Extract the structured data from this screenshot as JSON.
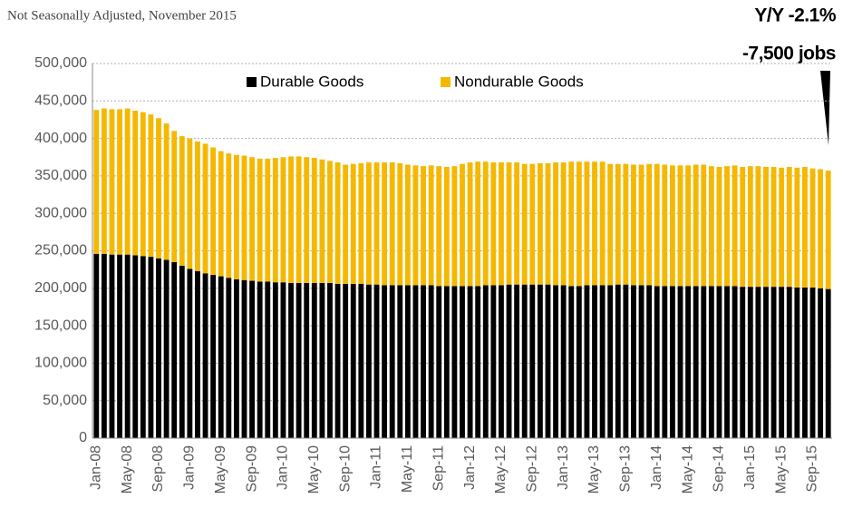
{
  "chart_data": {
    "type": "stacked_bar",
    "subtitle": "Not Seasonally Adjusted, November 2015",
    "annotations": [
      "Y/Y  -2.1%",
      "-7,500 jobs"
    ],
    "categories": [
      "Jan-08",
      null,
      null,
      null,
      "May-08",
      null,
      null,
      null,
      "Sep-08",
      null,
      null,
      null,
      "Jan-09",
      null,
      null,
      null,
      "May-09",
      null,
      null,
      null,
      "Sep-09",
      null,
      null,
      null,
      "Jan-10",
      null,
      null,
      null,
      "May-10",
      null,
      null,
      null,
      "Sep-10",
      null,
      null,
      null,
      "Jan-11",
      null,
      null,
      null,
      "May-11",
      null,
      null,
      null,
      "Sep-11",
      null,
      null,
      null,
      "Jan-12",
      null,
      null,
      null,
      "May-12",
      null,
      null,
      null,
      "Sep-12",
      null,
      null,
      null,
      "Jan-13",
      null,
      null,
      null,
      "May-13",
      null,
      null,
      null,
      "Sep-13",
      null,
      null,
      null,
      "Jan-14",
      null,
      null,
      null,
      "May-14",
      null,
      null,
      null,
      "Sep-14",
      null,
      null,
      null,
      "Jan-15",
      null,
      null,
      null,
      "May-15",
      null,
      null,
      null,
      "Sep-15",
      null,
      null
    ],
    "series": [
      {
        "name": "Durable Goods",
        "color": "#000000",
        "values": [
          246000,
          246000,
          245000,
          245000,
          245000,
          244000,
          243000,
          242000,
          240000,
          238000,
          235000,
          230000,
          226000,
          223000,
          220000,
          218000,
          216000,
          214000,
          212000,
          211000,
          210000,
          209000,
          209000,
          208000,
          208000,
          207000,
          207000,
          207000,
          207000,
          207000,
          207000,
          206000,
          206000,
          206000,
          206000,
          205000,
          205000,
          204000,
          204000,
          204000,
          204000,
          204000,
          204000,
          204000,
          203000,
          203000,
          203000,
          203000,
          203000,
          203000,
          204000,
          204000,
          204000,
          205000,
          205000,
          205000,
          205000,
          205000,
          205000,
          204000,
          204000,
          203000,
          203000,
          204000,
          204000,
          204000,
          204000,
          205000,
          205000,
          204000,
          204000,
          204000,
          203000,
          203000,
          203000,
          203000,
          203000,
          203000,
          203000,
          203000,
          203000,
          203000,
          203000,
          202000,
          202000,
          202000,
          202000,
          202000,
          202000,
          202000,
          201000,
          201000,
          201000,
          200000,
          199000
        ]
      },
      {
        "name": "Nondurable Goods",
        "color": "#f5b800",
        "values": [
          192000,
          194000,
          194000,
          194000,
          195000,
          193000,
          192000,
          190000,
          187000,
          182000,
          175000,
          173000,
          174000,
          173000,
          173000,
          170000,
          167000,
          166000,
          166000,
          166000,
          165000,
          164000,
          164000,
          166000,
          167000,
          169000,
          169000,
          168000,
          167000,
          165000,
          163000,
          162000,
          159000,
          160000,
          161000,
          163000,
          163000,
          164000,
          164000,
          163000,
          161000,
          160000,
          159000,
          160000,
          160000,
          159000,
          160000,
          163000,
          165000,
          166000,
          165000,
          164000,
          164000,
          163000,
          163000,
          161000,
          161000,
          162000,
          162000,
          164000,
          164000,
          166000,
          166000,
          165000,
          165000,
          165000,
          162000,
          161000,
          161000,
          161000,
          161000,
          162000,
          163000,
          162000,
          161000,
          161000,
          161000,
          162000,
          162000,
          160000,
          159000,
          160000,
          161000,
          160000,
          161000,
          161000,
          160000,
          160000,
          159000,
          160000,
          160000,
          161000,
          159000,
          159000,
          158000
        ]
      }
    ],
    "ylim": [
      0,
      500000
    ],
    "yticks": [
      0,
      {
        "value": 50000,
        "label": "50,000"
      },
      {
        "value": 100000,
        "label": "100,000"
      },
      {
        "value": 150000,
        "label": "150,000"
      },
      {
        "value": 200000,
        "label": "200,000"
      },
      {
        "value": 250000,
        "label": "250,000"
      },
      {
        "value": 300000,
        "label": "300,000"
      },
      {
        "value": 350000,
        "label": "350,000"
      },
      {
        "value": 400000,
        "label": "400,000"
      },
      {
        "value": 450000,
        "label": "450,000"
      },
      {
        "value": 500000,
        "label": "500,000"
      }
    ],
    "grid": true
  }
}
